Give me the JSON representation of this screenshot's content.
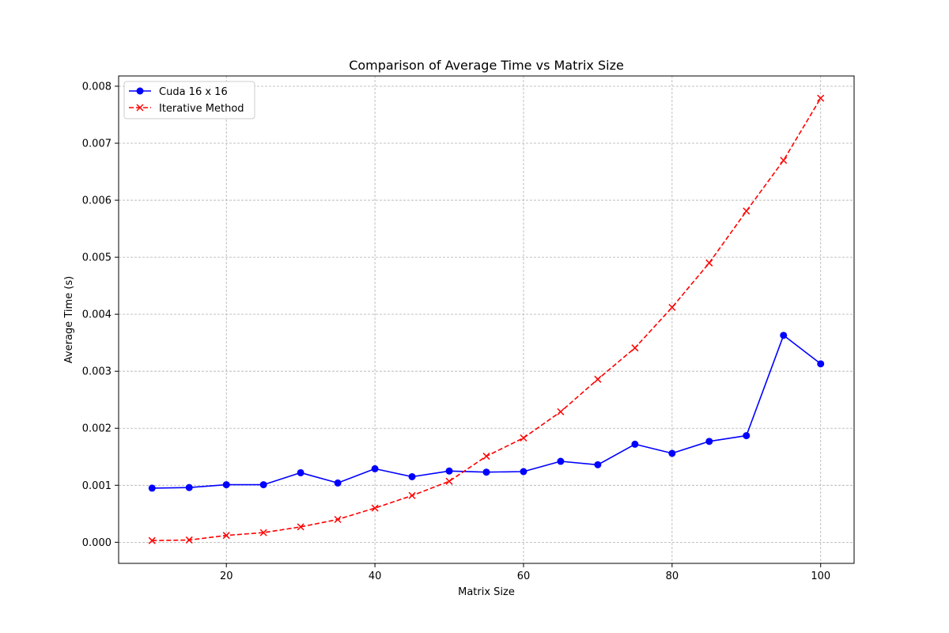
{
  "chart_data": {
    "type": "line",
    "title": "Comparison of Average Time vs Matrix Size",
    "xlabel": "Matrix Size",
    "ylabel": "Average Time (s)",
    "xlim": [
      5.5,
      104.5
    ],
    "ylim": [
      -0.00037,
      0.00818
    ],
    "xticks": [
      20,
      40,
      60,
      80,
      100
    ],
    "xtick_labels": [
      "20",
      "40",
      "60",
      "80",
      "100"
    ],
    "yticks": [
      0.0,
      0.001,
      0.002,
      0.003,
      0.004,
      0.005,
      0.006,
      0.007,
      0.008
    ],
    "ytick_labels": [
      "0.000",
      "0.001",
      "0.002",
      "0.003",
      "0.004",
      "0.005",
      "0.006",
      "0.007",
      "0.008"
    ],
    "grid": true,
    "legend_position": "upper-left",
    "x": [
      10,
      15,
      20,
      25,
      30,
      35,
      40,
      45,
      50,
      55,
      60,
      65,
      70,
      75,
      80,
      85,
      90,
      95,
      100
    ],
    "series": [
      {
        "name": "Cuda 16 x 16",
        "color": "#0000ff",
        "marker": "circle",
        "linestyle": "solid",
        "values": [
          0.00095,
          0.00096,
          0.00101,
          0.00101,
          0.00122,
          0.00104,
          0.00129,
          0.00115,
          0.00125,
          0.00123,
          0.00124,
          0.00142,
          0.00136,
          0.00172,
          0.00156,
          0.00177,
          0.00187,
          0.00363,
          0.00313
        ]
      },
      {
        "name": "Iterative Method",
        "color": "#ff0000",
        "marker": "x",
        "linestyle": "dashed",
        "values": [
          3e-05,
          4e-05,
          0.00012,
          0.00017,
          0.00027,
          0.0004,
          0.0006,
          0.00082,
          0.00107,
          0.00151,
          0.00183,
          0.00229,
          0.00286,
          0.00341,
          0.00412,
          0.0049,
          0.00581,
          0.0067,
          0.00779
        ]
      }
    ]
  }
}
